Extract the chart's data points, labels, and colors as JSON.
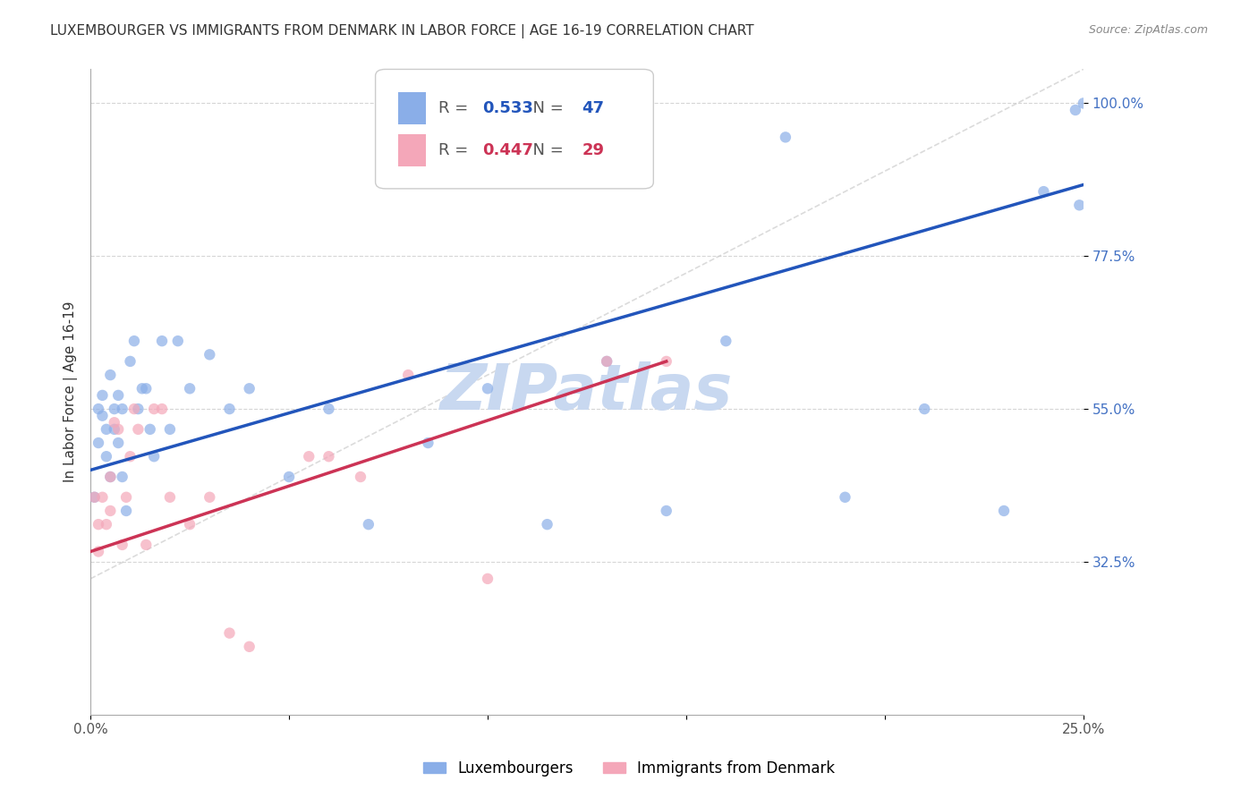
{
  "title": "LUXEMBOURGER VS IMMIGRANTS FROM DENMARK IN LABOR FORCE | AGE 16-19 CORRELATION CHART",
  "source": "Source: ZipAtlas.com",
  "ylabel": "In Labor Force | Age 16-19",
  "x_min": 0.0,
  "x_max": 0.25,
  "y_min": 0.1,
  "y_max": 1.05,
  "x_ticks": [
    0.0,
    0.05,
    0.1,
    0.15,
    0.2,
    0.25
  ],
  "x_tick_labels": [
    "0.0%",
    "",
    "",
    "",
    "",
    "25.0%"
  ],
  "y_ticks": [
    0.325,
    0.55,
    0.775,
    1.0
  ],
  "y_tick_labels": [
    "32.5%",
    "55.0%",
    "77.5%",
    "100.0%"
  ],
  "y_tick_color": "#4472C4",
  "grid_color": "#cccccc",
  "background_color": "#ffffff",
  "lux_color": "#8aaee8",
  "imm_color": "#f4a7b9",
  "lux_line_color": "#2255bb",
  "imm_line_color": "#cc3355",
  "diag_line_color": "#cccccc",
  "lux_R": 0.533,
  "lux_N": 47,
  "imm_R": 0.447,
  "imm_N": 29,
  "lux_scatter_x": [
    0.001,
    0.002,
    0.002,
    0.003,
    0.003,
    0.004,
    0.004,
    0.005,
    0.005,
    0.006,
    0.006,
    0.007,
    0.007,
    0.008,
    0.008,
    0.009,
    0.01,
    0.011,
    0.012,
    0.013,
    0.014,
    0.015,
    0.016,
    0.018,
    0.02,
    0.022,
    0.025,
    0.03,
    0.035,
    0.04,
    0.05,
    0.06,
    0.07,
    0.085,
    0.1,
    0.115,
    0.13,
    0.145,
    0.16,
    0.175,
    0.19,
    0.21,
    0.23,
    0.24,
    0.248,
    0.249,
    0.25
  ],
  "lux_scatter_y": [
    0.42,
    0.5,
    0.55,
    0.57,
    0.54,
    0.52,
    0.48,
    0.6,
    0.45,
    0.55,
    0.52,
    0.57,
    0.5,
    0.55,
    0.45,
    0.4,
    0.62,
    0.65,
    0.55,
    0.58,
    0.58,
    0.52,
    0.48,
    0.65,
    0.52,
    0.65,
    0.58,
    0.63,
    0.55,
    0.58,
    0.45,
    0.55,
    0.38,
    0.5,
    0.58,
    0.38,
    0.62,
    0.4,
    0.65,
    0.95,
    0.42,
    0.55,
    0.4,
    0.87,
    0.99,
    0.85,
    1.0
  ],
  "imm_scatter_x": [
    0.001,
    0.002,
    0.002,
    0.003,
    0.004,
    0.005,
    0.005,
    0.006,
    0.007,
    0.008,
    0.009,
    0.01,
    0.011,
    0.012,
    0.014,
    0.016,
    0.018,
    0.02,
    0.025,
    0.03,
    0.035,
    0.04,
    0.055,
    0.06,
    0.068,
    0.08,
    0.1,
    0.13,
    0.145
  ],
  "imm_scatter_y": [
    0.42,
    0.38,
    0.34,
    0.42,
    0.38,
    0.45,
    0.4,
    0.53,
    0.52,
    0.35,
    0.42,
    0.48,
    0.55,
    0.52,
    0.35,
    0.55,
    0.55,
    0.42,
    0.38,
    0.42,
    0.22,
    0.2,
    0.48,
    0.48,
    0.45,
    0.6,
    0.3,
    0.62,
    0.62
  ],
  "lux_line_x": [
    0.0,
    0.25
  ],
  "lux_line_y": [
    0.46,
    0.88
  ],
  "imm_line_x": [
    0.0,
    0.145
  ],
  "imm_line_y": [
    0.34,
    0.62
  ],
  "diag_line_x": [
    0.0,
    0.25
  ],
  "diag_line_y": [
    0.3,
    1.05
  ],
  "watermark": "ZIPatlas",
  "watermark_color": "#c8d8f0",
  "marker_size": 80,
  "alpha": 0.7
}
